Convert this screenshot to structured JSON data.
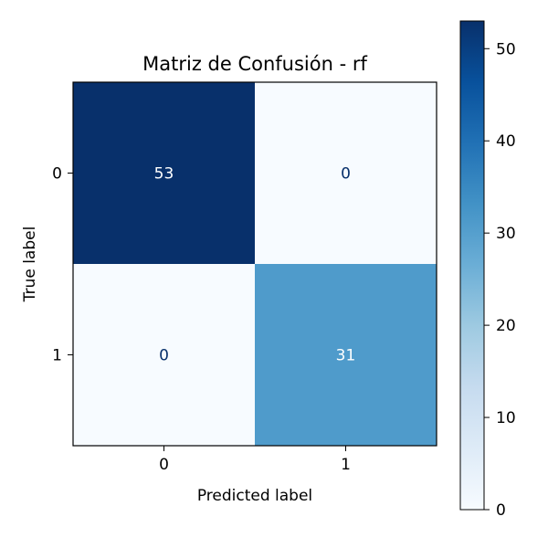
{
  "chart_data": {
    "type": "heatmap",
    "title": "Matriz de Confusión - rf",
    "xlabel": "Predicted label",
    "ylabel": "True label",
    "x_categories": [
      "0",
      "1"
    ],
    "y_categories": [
      "0",
      "1"
    ],
    "values": [
      [
        53,
        0
      ],
      [
        0,
        31
      ]
    ],
    "colormap": "Blues",
    "color_range": [
      0,
      53
    ],
    "colorbar_ticks": [
      0,
      10,
      20,
      30,
      40,
      50
    ],
    "text_dark_color": "#08306b",
    "text_light_color": "#ffffff"
  }
}
